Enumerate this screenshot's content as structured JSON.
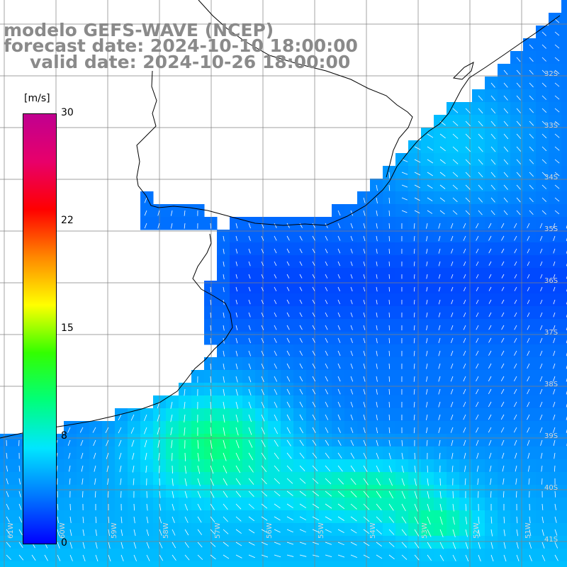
{
  "titles": {
    "line1": "modelo GEFS-WAVE (NCEP)",
    "line2": "forecast date: 2024-10-10 18:00:00",
    "line3": "valid date: 2024-10-26 18:00:00"
  },
  "colorbar": {
    "unit": "[m/s]",
    "ticks": [
      "30",
      "22",
      "15",
      "8",
      "0"
    ],
    "colors": [
      "#0000ff",
      "#0078ff",
      "#00e6ff",
      "#00ff7a",
      "#33ff00",
      "#ffff00",
      "#ff8800",
      "#ff0000",
      "#e8006a",
      "#c00090"
    ]
  },
  "axes": {
    "lat_labels": [
      "32S",
      "33S",
      "34S",
      "35S",
      "36S",
      "37S",
      "38S",
      "39S",
      "40S",
      "41S"
    ],
    "lon_labels": [
      "61W",
      "60W",
      "59W",
      "58W",
      "57W",
      "56W",
      "55W",
      "54W",
      "53W",
      "52W",
      "51W"
    ]
  },
  "map": {
    "land_color": "#ffffff",
    "coast_color": "#000000",
    "grid_color": "#808080",
    "arrow_color": "#ffffff"
  }
}
